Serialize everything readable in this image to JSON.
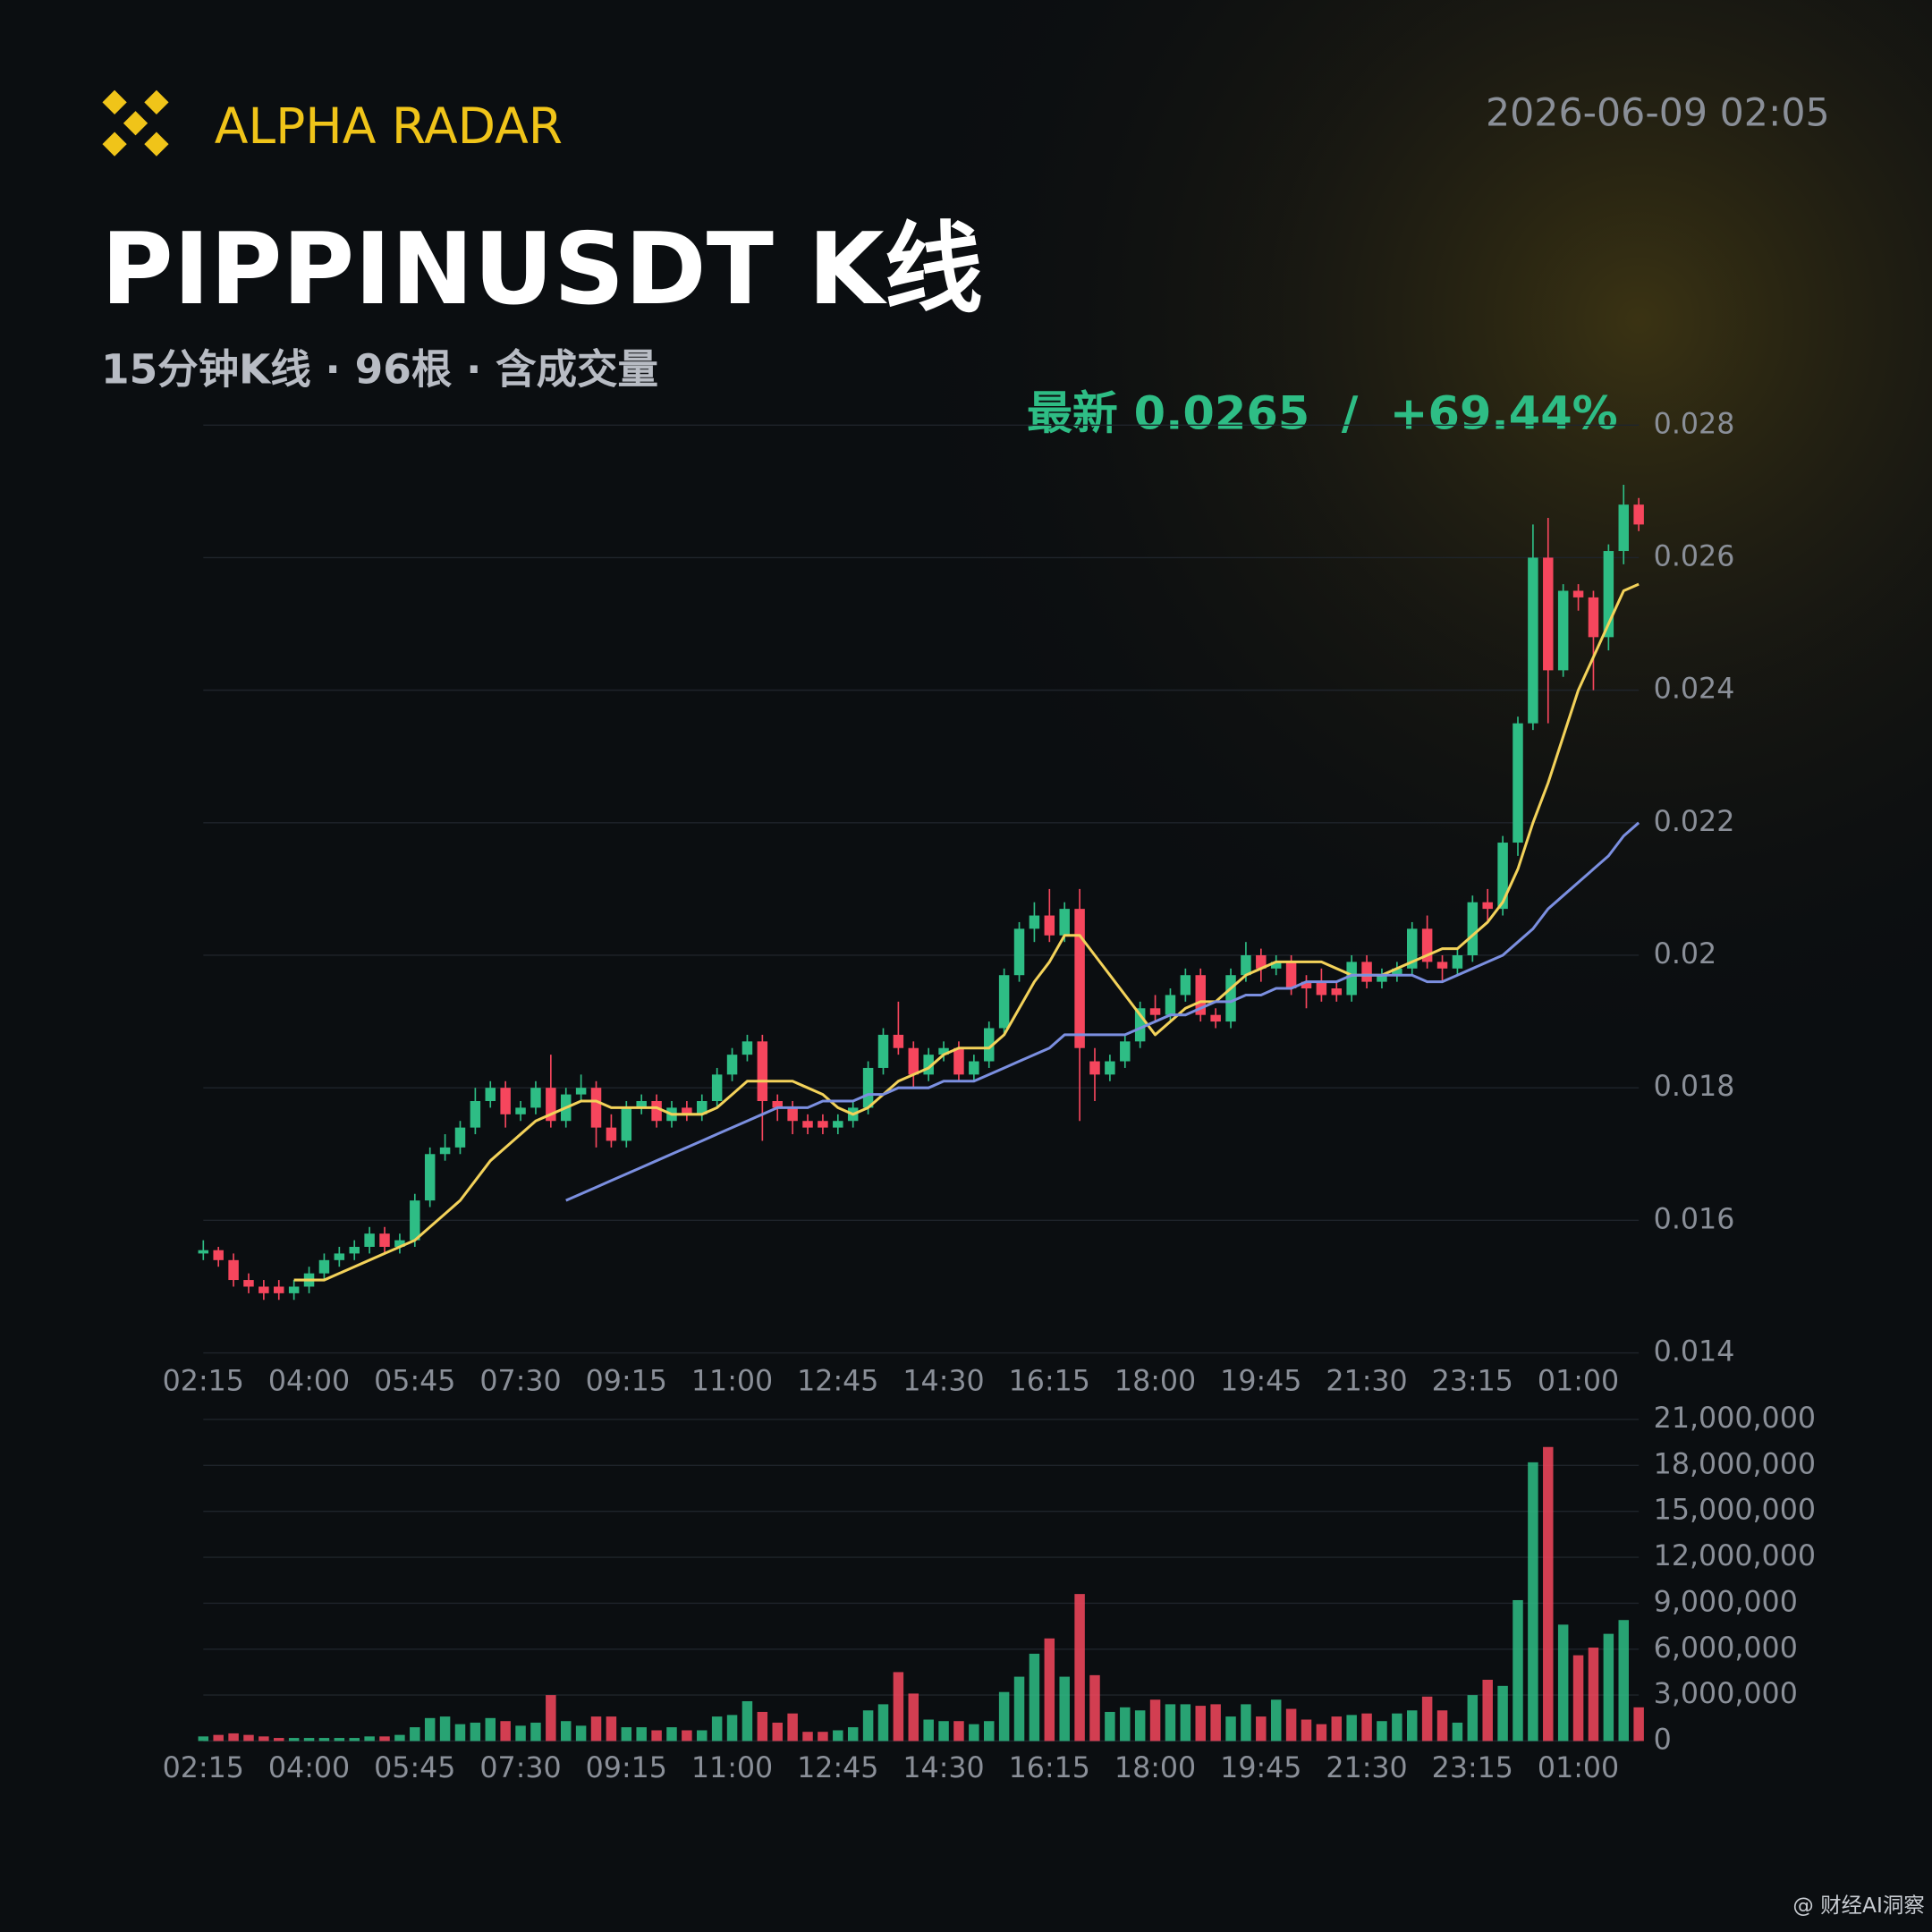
{
  "brand": "ALPHA RADAR",
  "timestamp": "2026-06-09 02:05",
  "watermark": "@ 财经AI洞察",
  "chart_data": {
    "type": "candlestick",
    "title": "PIPPINUSDT K线",
    "subtitle": "15分钟K线 · 96根 · 含成交量",
    "annotation": "最新 0.0265  /  +69.44%",
    "up_color": "#2ebd85",
    "down_color": "#f6465d",
    "grid": true,
    "categories": [
      "02:15",
      null,
      null,
      null,
      null,
      null,
      null,
      "04:00",
      null,
      null,
      null,
      null,
      null,
      null,
      "05:45",
      null,
      null,
      null,
      null,
      null,
      null,
      "07:30",
      null,
      null,
      null,
      null,
      null,
      null,
      "09:15",
      null,
      null,
      null,
      null,
      null,
      null,
      "11:00",
      null,
      null,
      null,
      null,
      null,
      null,
      "12:45",
      null,
      null,
      null,
      null,
      null,
      null,
      "14:30",
      null,
      null,
      null,
      null,
      null,
      null,
      "16:15",
      null,
      null,
      null,
      null,
      null,
      null,
      "18:00",
      null,
      null,
      null,
      null,
      null,
      null,
      "19:45",
      null,
      null,
      null,
      null,
      null,
      null,
      "21:30",
      null,
      null,
      null,
      null,
      null,
      null,
      "23:15",
      null,
      null,
      null,
      null,
      null,
      null,
      "01:00",
      null,
      null,
      null,
      null
    ],
    "open": [
      0.0155,
      0.01555,
      0.0154,
      0.0151,
      0.015,
      0.015,
      0.0149,
      0.015,
      0.0152,
      0.0154,
      0.0155,
      0.0156,
      0.0158,
      0.0156,
      0.0157,
      0.0163,
      0.017,
      0.0171,
      0.0174,
      0.0178,
      0.018,
      0.0176,
      0.0177,
      0.018,
      0.0175,
      0.0179,
      0.018,
      0.0174,
      0.0172,
      0.0177,
      0.0178,
      0.0175,
      0.0177,
      0.0176,
      0.0178,
      0.0182,
      0.0185,
      0.0187,
      0.0178,
      0.0177,
      0.0175,
      0.0175,
      0.0174,
      0.0175,
      0.0177,
      0.0183,
      0.0188,
      0.0186,
      0.0182,
      0.0185,
      0.0186,
      0.0182,
      0.0184,
      0.0189,
      0.0197,
      0.0204,
      0.0206,
      0.0203,
      0.0207,
      0.0184,
      0.0182,
      0.0184,
      0.0187,
      0.0192,
      0.0191,
      0.0194,
      0.0197,
      0.0191,
      0.019,
      0.0197,
      0.02,
      0.0198,
      0.0199,
      0.0196,
      0.0196,
      0.0195,
      0.0194,
      0.0199,
      0.0196,
      0.0197,
      0.0198,
      0.0204,
      0.0199,
      0.0198,
      0.02,
      0.0208,
      0.0207,
      0.0217,
      0.0235,
      0.026,
      0.0243,
      0.0255,
      0.0254,
      0.0248,
      0.0261,
      0.0268
    ],
    "high": [
      0.0157,
      0.0156,
      0.0155,
      0.0152,
      0.0151,
      0.0151,
      0.0151,
      0.0153,
      0.0155,
      0.0156,
      0.0157,
      0.0159,
      0.0159,
      0.0158,
      0.0164,
      0.0171,
      0.0173,
      0.0175,
      0.018,
      0.0181,
      0.0181,
      0.0178,
      0.0181,
      0.0185,
      0.018,
      0.0182,
      0.0181,
      0.0176,
      0.0178,
      0.0179,
      0.0179,
      0.0178,
      0.0178,
      0.0179,
      0.0183,
      0.0186,
      0.0188,
      0.0188,
      0.0179,
      0.0178,
      0.0176,
      0.0176,
      0.0176,
      0.0178,
      0.0184,
      0.0189,
      0.0193,
      0.0187,
      0.0186,
      0.0187,
      0.0187,
      0.0185,
      0.019,
      0.0198,
      0.0205,
      0.0208,
      0.021,
      0.0208,
      0.021,
      0.0186,
      0.0185,
      0.0188,
      0.0193,
      0.0194,
      0.0195,
      0.0198,
      0.0198,
      0.0192,
      0.0198,
      0.0202,
      0.0201,
      0.02,
      0.02,
      0.0197,
      0.0198,
      0.0196,
      0.02,
      0.02,
      0.0198,
      0.0199,
      0.0205,
      0.0206,
      0.02,
      0.0201,
      0.0209,
      0.021,
      0.0218,
      0.0236,
      0.0265,
      0.0266,
      0.0256,
      0.0256,
      0.0255,
      0.0262,
      0.0271,
      0.0269
    ],
    "low": [
      0.0154,
      0.0153,
      0.015,
      0.0149,
      0.0148,
      0.0148,
      0.0148,
      0.0149,
      0.0151,
      0.0153,
      0.0154,
      0.0155,
      0.0155,
      0.0155,
      0.0156,
      0.0162,
      0.0169,
      0.017,
      0.0173,
      0.0177,
      0.0174,
      0.0175,
      0.0176,
      0.0174,
      0.0174,
      0.0178,
      0.0171,
      0.0171,
      0.0171,
      0.0176,
      0.0174,
      0.0174,
      0.0175,
      0.0175,
      0.0177,
      0.0181,
      0.0184,
      0.0172,
      0.0175,
      0.0173,
      0.0173,
      0.0173,
      0.0173,
      0.0174,
      0.0176,
      0.0182,
      0.0185,
      0.018,
      0.0181,
      0.0184,
      0.0181,
      0.0181,
      0.0183,
      0.0188,
      0.0196,
      0.0202,
      0.0202,
      0.0202,
      0.0175,
      0.0178,
      0.0181,
      0.0183,
      0.0186,
      0.019,
      0.019,
      0.0193,
      0.019,
      0.0189,
      0.0189,
      0.0196,
      0.0196,
      0.0197,
      0.0194,
      0.0192,
      0.0193,
      0.0193,
      0.0193,
      0.0195,
      0.0195,
      0.0196,
      0.0197,
      0.0198,
      0.0196,
      0.0197,
      0.0199,
      0.0205,
      0.0206,
      0.0215,
      0.0234,
      0.0235,
      0.0242,
      0.0252,
      0.024,
      0.0246,
      0.0259,
      0.0264
    ],
    "close": [
      0.01555,
      0.0154,
      0.0151,
      0.015,
      0.0149,
      0.0149,
      0.015,
      0.0152,
      0.0154,
      0.0155,
      0.0156,
      0.0158,
      0.0156,
      0.0157,
      0.0163,
      0.017,
      0.0171,
      0.0174,
      0.0178,
      0.018,
      0.0176,
      0.0177,
      0.018,
      0.0175,
      0.0179,
      0.018,
      0.0174,
      0.0172,
      0.0177,
      0.0178,
      0.0175,
      0.0177,
      0.0176,
      0.0178,
      0.0182,
      0.0185,
      0.0187,
      0.0178,
      0.0177,
      0.0175,
      0.0174,
      0.0174,
      0.0175,
      0.0177,
      0.0183,
      0.0188,
      0.0186,
      0.0182,
      0.0185,
      0.0186,
      0.0182,
      0.0184,
      0.0189,
      0.0197,
      0.0204,
      0.0206,
      0.0203,
      0.0207,
      0.0186,
      0.0182,
      0.0184,
      0.0187,
      0.0192,
      0.0191,
      0.0194,
      0.0197,
      0.0191,
      0.019,
      0.0197,
      0.02,
      0.0198,
      0.0199,
      0.0195,
      0.0195,
      0.0194,
      0.0194,
      0.0199,
      0.0196,
      0.0197,
      0.0198,
      0.0204,
      0.0199,
      0.0198,
      0.02,
      0.0208,
      0.0207,
      0.0217,
      0.0235,
      0.026,
      0.0243,
      0.0255,
      0.0254,
      0.0248,
      0.0261,
      0.0268,
      0.0265
    ],
    "ma": [
      {
        "color": "#f3d25a",
        "values": [
          null,
          null,
          null,
          null,
          null,
          null,
          0.0151,
          0.0151,
          0.0151,
          0.0152,
          0.0153,
          0.0154,
          0.0155,
          0.0156,
          0.0157,
          0.0159,
          0.0161,
          0.0163,
          0.0166,
          0.0169,
          0.0171,
          0.0173,
          0.0175,
          0.0176,
          0.0177,
          0.0178,
          0.0178,
          0.0177,
          0.0177,
          0.0177,
          0.0177,
          0.0176,
          0.0176,
          0.0176,
          0.0177,
          0.0179,
          0.0181,
          0.0181,
          0.0181,
          0.0181,
          0.018,
          0.0179,
          0.0177,
          0.0176,
          0.0177,
          0.0179,
          0.0181,
          0.0182,
          0.0183,
          0.0185,
          0.0186,
          0.0186,
          0.0186,
          0.0188,
          0.0192,
          0.0196,
          0.0199,
          0.0203,
          0.0203,
          0.02,
          0.0197,
          0.0194,
          0.0191,
          0.0188,
          0.019,
          0.0192,
          0.0193,
          0.0193,
          0.0195,
          0.0197,
          0.0198,
          0.0199,
          0.0199,
          0.0199,
          0.0199,
          0.0198,
          0.0197,
          0.0197,
          0.0197,
          0.0198,
          0.0199,
          0.02,
          0.0201,
          0.0201,
          0.0203,
          0.0205,
          0.0208,
          0.0213,
          0.022,
          0.0226,
          0.0233,
          0.024,
          0.0245,
          0.025,
          0.0255,
          0.0256
        ]
      },
      {
        "color": "#7b8fe0",
        "values": [
          null,
          null,
          null,
          null,
          null,
          null,
          null,
          null,
          null,
          null,
          null,
          null,
          null,
          null,
          null,
          null,
          null,
          null,
          null,
          null,
          null,
          null,
          null,
          null,
          0.0163,
          0.0164,
          0.0165,
          0.0166,
          0.0167,
          0.0168,
          0.0169,
          0.017,
          0.0171,
          0.0172,
          0.0173,
          0.0174,
          0.0175,
          0.0176,
          0.0177,
          0.0177,
          0.0177,
          0.0178,
          0.0178,
          0.0178,
          0.0179,
          0.0179,
          0.018,
          0.018,
          0.018,
          0.0181,
          0.0181,
          0.0181,
          0.0182,
          0.0183,
          0.0184,
          0.0185,
          0.0186,
          0.0188,
          0.0188,
          0.0188,
          0.0188,
          0.0188,
          0.0189,
          0.019,
          0.0191,
          0.0191,
          0.0192,
          0.0193,
          0.0193,
          0.0194,
          0.0194,
          0.0195,
          0.0195,
          0.0196,
          0.0196,
          0.0196,
          0.0197,
          0.0197,
          0.0197,
          0.0197,
          0.0197,
          0.0196,
          0.0196,
          0.0197,
          0.0198,
          0.0199,
          0.02,
          0.0202,
          0.0204,
          0.0207,
          0.0209,
          0.0211,
          0.0213,
          0.0215,
          0.0218,
          0.022
        ]
      }
    ],
    "ylim": [
      0.014,
      0.028
    ],
    "yticks": [
      0.014,
      0.016,
      0.018,
      0.02,
      0.022,
      0.024,
      0.026,
      0.028
    ],
    "volume": [
      300000,
      400000,
      500000,
      400000,
      300000,
      200000,
      200000,
      200000,
      200000,
      200000,
      200000,
      300000,
      300000,
      400000,
      900000,
      1500000,
      1600000,
      1100000,
      1200000,
      1500000,
      1300000,
      1000000,
      1200000,
      3000000,
      1300000,
      1000000,
      1600000,
      1600000,
      900000,
      900000,
      700000,
      900000,
      700000,
      700000,
      1600000,
      1700000,
      2600000,
      1900000,
      1200000,
      1800000,
      600000,
      600000,
      700000,
      900000,
      2000000,
      2400000,
      4500000,
      3100000,
      1400000,
      1300000,
      1300000,
      1100000,
      1300000,
      3200000,
      4200000,
      5700000,
      6700000,
      4200000,
      9600000,
      4300000,
      1900000,
      2200000,
      2000000,
      2700000,
      2400000,
      2400000,
      2300000,
      2400000,
      1600000,
      2400000,
      1600000,
      2700000,
      2100000,
      1400000,
      1100000,
      1600000,
      1700000,
      1800000,
      1300000,
      1800000,
      2000000,
      2900000,
      2000000,
      1200000,
      3000000,
      4000000,
      3600000,
      9200000,
      18200000,
      19200000,
      7600000,
      5600000,
      6100000,
      7000000,
      7900000,
      2200000
    ],
    "vlim": [
      0,
      21000000
    ],
    "vticks": [
      0,
      {
        "value": 3000000,
        "label": "3,000,000"
      },
      {
        "value": 6000000,
        "label": "6,000,000"
      },
      {
        "value": 9000000,
        "label": "9,000,000"
      },
      {
        "value": 12000000,
        "label": "12,000,000"
      },
      {
        "value": 15000000,
        "label": "15,000,000"
      },
      {
        "value": 18000000,
        "label": "18,000,000"
      },
      {
        "value": 21000000,
        "label": "21,000,000"
      }
    ]
  }
}
